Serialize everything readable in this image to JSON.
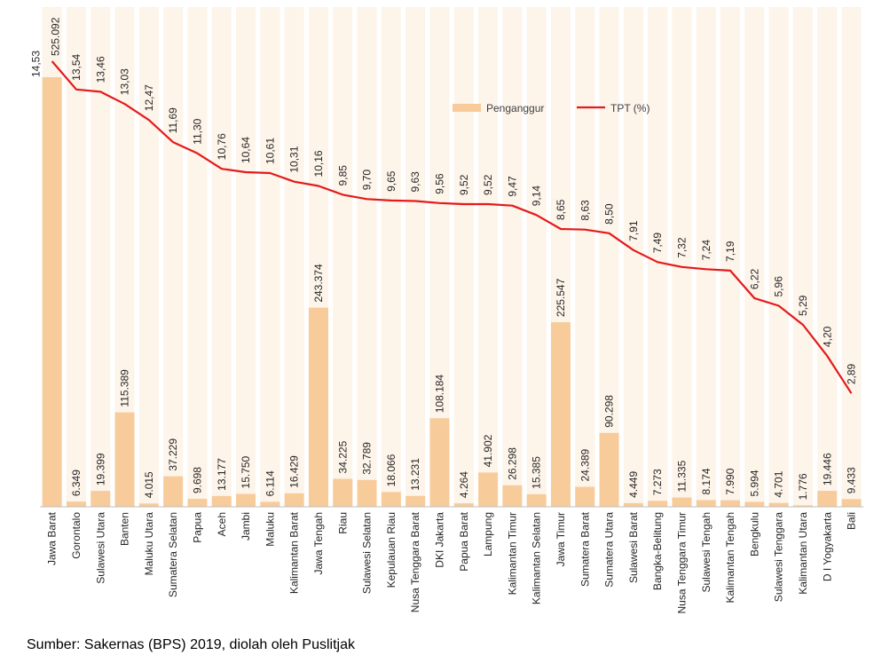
{
  "chart_data": {
    "type": "bar+line",
    "categories": [
      "Jawa Barat",
      "Gorontalo",
      "Sulawesi Utara",
      "Banten",
      "Maluku Utara",
      "Sumatera Selatan",
      "Papua",
      "Aceh",
      "Jambi",
      "Maluku",
      "Kalimantan Barat",
      "Jawa Tengah",
      "Riau",
      "Sulawesi Selatan",
      "Kepulauan Riau",
      "Nusa Tenggara Barat",
      "DKI Jakarta",
      "Papua Barat",
      "Lampung",
      "Kalimantan Timur",
      "Kalimantan Selatan",
      "Jawa Timur",
      "Sumatera Barat",
      "Sumatera Utara",
      "Sulawesi Barat",
      "Bangka-Belitung",
      "Nusa Tenggara Timur",
      "Sulawesi Tengah",
      "Kalimantan Tengah",
      "Bengkulu",
      "Sulawesi Tenggara",
      "Kalimantan Utara",
      "D I Yogyakarta",
      "Bali"
    ],
    "series": [
      {
        "name": "Penganggur",
        "kind": "bar",
        "color": "#F8CB9B",
        "values": [
          525092,
          6349,
          19399,
          115389,
          4015,
          37229,
          9698,
          13177,
          15750,
          6114,
          16429,
          243374,
          34225,
          32789,
          18066,
          13231,
          108184,
          4264,
          41902,
          26298,
          15385,
          225547,
          24389,
          90298,
          4449,
          7273,
          11335,
          8174,
          7990,
          5994,
          4701,
          1776,
          19446,
          9433
        ],
        "labels": [
          "525.092",
          "6.349",
          "19.399",
          "115.389",
          "4.015",
          "37.229",
          "9.698",
          "13.177",
          "15.750",
          "6.114",
          "16.429",
          "243.374",
          "34.225",
          "32.789",
          "18.066",
          "13.231",
          "108.184",
          "4.264",
          "41.902",
          "26.298",
          "15.385",
          "225.547",
          "24.389",
          "90.298",
          "4.449",
          "7.273",
          "11.335",
          "8.174",
          "7.990",
          "5.994",
          "4.701",
          "1.776",
          "19.446",
          "9.433"
        ]
      },
      {
        "name": "TPT (%)",
        "kind": "line",
        "color": "#E41A1C",
        "values": [
          14.53,
          13.54,
          13.46,
          13.03,
          12.47,
          11.69,
          11.3,
          10.76,
          10.64,
          10.61,
          10.31,
          10.16,
          9.85,
          9.7,
          9.65,
          9.63,
          9.56,
          9.52,
          9.52,
          9.47,
          9.14,
          8.65,
          8.63,
          8.5,
          7.91,
          7.49,
          7.32,
          7.24,
          7.19,
          6.22,
          5.96,
          5.29,
          4.2,
          2.89
        ],
        "labels": [
          "14,53",
          "13,54",
          "13,46",
          "13,03",
          "12,47",
          "11,69",
          "11,30",
          "10,76",
          "10,64",
          "10,61",
          "10,31",
          "10,16",
          "9,85",
          "9,70",
          "9,65",
          "9,63",
          "9,56",
          "9,52",
          "9,52",
          "9,47",
          "9,14",
          "8,65",
          "8,63",
          "8,50",
          "7,91",
          "7,49",
          "7,32",
          "7,24",
          "7,19",
          "6,22",
          "5,96",
          "5,29",
          "4,20",
          "2,89"
        ]
      }
    ],
    "y_bar_range": [
      0,
      525092
    ],
    "y_line_range": [
      1.9,
      14.53
    ],
    "legend_position": "top-right",
    "grid": false
  },
  "source_text": "Sumber: Sakernas (BPS) 2019, diolah oleh Puslitjak"
}
